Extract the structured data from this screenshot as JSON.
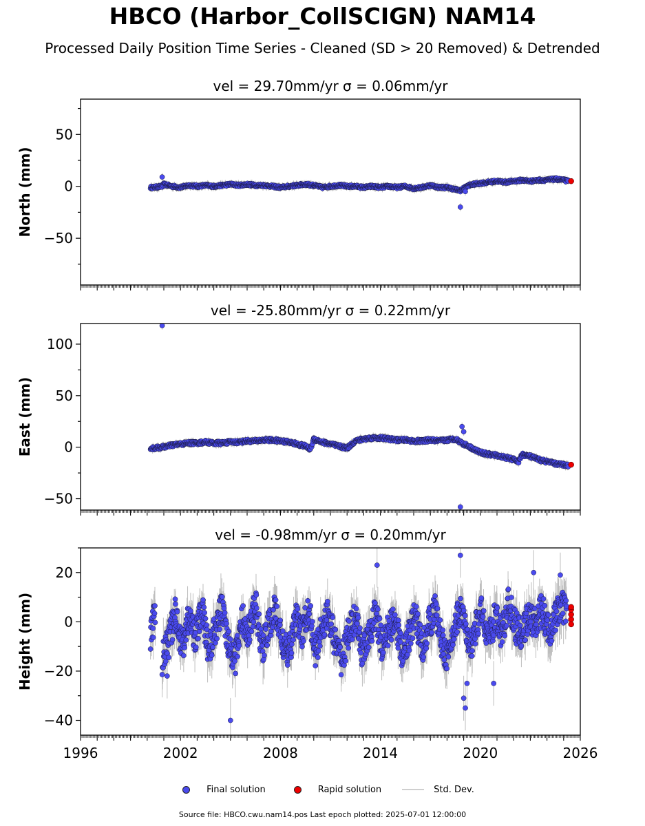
{
  "header": {
    "title": "HBCO (Harbor_CollSCIGN) NAM14",
    "subtitle": "Processed Daily Position Time Series - Cleaned (SD > 20 Removed) & Detrended"
  },
  "legend": {
    "final": "Final solution",
    "rapid": "Rapid solution",
    "std": "Std. Dev."
  },
  "footer": {
    "text": "Source file: HBCO.cwu.nam14.pos  Last epoch plotted: 2025-07-01 12:00:00"
  },
  "colors": {
    "final": "#4a4aee",
    "rapid": "#ee0000",
    "std": "#bdbdbd"
  },
  "chart_data": [
    {
      "type": "scatter",
      "title": "vel = 29.70mm/yr   σ = 0.06mm/yr",
      "ylabel": "North (mm)",
      "xlim": [
        1996,
        2026
      ],
      "ylim": [
        -95,
        84
      ],
      "yticks": [
        -50,
        0,
        50
      ],
      "xtick_labels": [],
      "series": [
        {
          "name": "Final solution",
          "x": [
            2000.2,
            2000.4,
            2000.9,
            2001.0,
            2001.5,
            2002.0,
            2002.5,
            2003.0,
            2003.5,
            2004.0,
            2004.5,
            2005.0,
            2005.5,
            2006.0,
            2006.5,
            2007.0,
            2007.5,
            2008.0,
            2008.5,
            2009.0,
            2009.5,
            2010.0,
            2010.5,
            2011.0,
            2011.5,
            2012.0,
            2012.5,
            2013.0,
            2013.5,
            2014.0,
            2014.5,
            2015.0,
            2015.5,
            2016.0,
            2016.5,
            2017.0,
            2017.5,
            2018.0,
            2018.5,
            2018.8,
            2019.0,
            2019.3,
            2019.6,
            2020.0,
            2020.5,
            2021.0,
            2021.5,
            2022.0,
            2022.5,
            2023.0,
            2023.5,
            2024.0,
            2024.5,
            2025.0,
            2025.3
          ],
          "y": [
            -1,
            -1,
            0,
            2,
            0,
            -1,
            1,
            0,
            1,
            0,
            1,
            2,
            1,
            2,
            1,
            1,
            0,
            -1,
            0,
            1,
            2,
            1,
            -1,
            0,
            1,
            0,
            0,
            -1,
            0,
            -1,
            0,
            -1,
            0,
            -2,
            -1,
            1,
            -1,
            -1,
            -3,
            -4,
            -2,
            1,
            2,
            3,
            4,
            5,
            4,
            5,
            6,
            5,
            6,
            6,
            7,
            6,
            5
          ]
        },
        {
          "name": "Rapid solution",
          "x": [
            2025.45
          ],
          "y": [
            5
          ]
        }
      ],
      "outliers": [
        {
          "x": 2000.9,
          "y": 9
        },
        {
          "x": 2018.8,
          "y": -20
        },
        {
          "x": 2019.1,
          "y": -5
        }
      ]
    },
    {
      "type": "scatter",
      "title": "vel = -25.80mm/yr   σ = 0.22mm/yr",
      "ylabel": "East (mm)",
      "xlim": [
        1996,
        2026
      ],
      "ylim": [
        -61,
        120
      ],
      "yticks": [
        -50,
        0,
        50,
        100
      ],
      "xtick_labels": [],
      "series": [
        {
          "name": "Final solution",
          "x": [
            2000.2,
            2000.4,
            2000.9,
            2001.5,
            2002.0,
            2002.5,
            2003.0,
            2003.5,
            2004.0,
            2004.5,
            2005.0,
            2005.5,
            2006.0,
            2006.5,
            2007.0,
            2007.5,
            2008.0,
            2008.5,
            2009.0,
            2009.5,
            2009.8,
            2010.0,
            2010.5,
            2011.0,
            2011.5,
            2012.0,
            2012.5,
            2013.0,
            2013.5,
            2014.0,
            2014.5,
            2015.0,
            2015.5,
            2016.0,
            2016.5,
            2017.0,
            2017.5,
            2018.0,
            2018.5,
            2018.8,
            2019.0,
            2019.3,
            2019.6,
            2020.0,
            2020.5,
            2021.0,
            2021.5,
            2022.0,
            2022.3,
            2022.5,
            2023.0,
            2023.5,
            2024.0,
            2024.5,
            2025.0,
            2025.3
          ],
          "y": [
            -1,
            -1,
            0,
            2,
            3,
            4,
            4,
            5,
            4,
            4,
            5,
            5,
            6,
            6,
            7,
            7,
            6,
            5,
            3,
            1,
            -2,
            8,
            5,
            3,
            1,
            -1,
            6,
            8,
            9,
            9,
            8,
            7,
            7,
            6,
            6,
            7,
            6,
            7,
            8,
            5,
            3,
            1,
            -2,
            -5,
            -7,
            -8,
            -10,
            -12,
            -14,
            -7,
            -9,
            -12,
            -14,
            -16,
            -17,
            -18
          ]
        },
        {
          "name": "Rapid solution",
          "x": [
            2025.45
          ],
          "y": [
            -17
          ]
        }
      ],
      "outliers": [
        {
          "x": 2000.9,
          "y": 118
        },
        {
          "x": 2018.8,
          "y": -58
        },
        {
          "x": 2018.9,
          "y": 20
        },
        {
          "x": 2019.0,
          "y": 15
        }
      ]
    },
    {
      "type": "scatter",
      "title": "vel = -0.98mm/yr   σ = 0.20mm/yr",
      "ylabel": "Height (mm)",
      "xlim": [
        1996,
        2026
      ],
      "ylim": [
        -46,
        30
      ],
      "yticks": [
        -40,
        -20,
        0,
        20
      ],
      "xtick_labels": [
        "1996",
        "2002",
        "2008",
        "2014",
        "2020",
        "2026"
      ],
      "series": [
        {
          "name": "Final solution",
          "x": [
            2000.2,
            2000.5,
            2000.9,
            2001.3,
            2001.7,
            2002.1,
            2002.5,
            2002.9,
            2003.3,
            2003.7,
            2004.1,
            2004.5,
            2004.9,
            2005.3,
            2005.7,
            2006.1,
            2006.5,
            2006.9,
            2007.3,
            2007.7,
            2008.1,
            2008.5,
            2008.9,
            2009.3,
            2009.7,
            2010.1,
            2010.5,
            2010.9,
            2011.3,
            2011.7,
            2012.1,
            2012.5,
            2012.9,
            2013.3,
            2013.7,
            2014.1,
            2014.5,
            2014.9,
            2015.3,
            2015.7,
            2016.1,
            2016.5,
            2016.9,
            2017.3,
            2017.7,
            2018.1,
            2018.5,
            2018.9,
            2019.3,
            2019.7,
            2020.1,
            2020.5,
            2020.9,
            2021.3,
            2021.7,
            2022.1,
            2022.5,
            2022.9,
            2023.3,
            2023.7,
            2024.1,
            2024.5,
            2024.9,
            2025.2
          ],
          "y": [
            -5,
            3,
            -15,
            -8,
            4,
            -10,
            2,
            -6,
            5,
            -12,
            -3,
            6,
            -9,
            -15,
            1,
            -4,
            7,
            -11,
            -2,
            5,
            -8,
            -14,
            2,
            -5,
            6,
            -13,
            -1,
            3,
            -9,
            -16,
            -4,
            1,
            -12,
            -7,
            4,
            -10,
            -3,
            2,
            -14,
            -6,
            3,
            -11,
            -1,
            5,
            -9,
            -15,
            0,
            6,
            -12,
            -3,
            4,
            -7,
            2,
            -5,
            8,
            -2,
            -6,
            3,
            -1,
            5,
            -4,
            2,
            6,
            3
          ]
        },
        {
          "name": "Rapid solution",
          "x": [
            2025.45,
            2025.45,
            2025.45,
            2025.45,
            2025.45
          ],
          "y": [
            -1,
            1,
            3,
            5,
            6
          ]
        }
      ],
      "outliers": [
        {
          "x": 2005.0,
          "y": -40
        },
        {
          "x": 2013.8,
          "y": 23
        },
        {
          "x": 2018.8,
          "y": 27
        },
        {
          "x": 2019.0,
          "y": -31
        },
        {
          "x": 2019.1,
          "y": -35
        },
        {
          "x": 2019.2,
          "y": -25
        },
        {
          "x": 2020.8,
          "y": -25
        },
        {
          "x": 2024.8,
          "y": 19
        },
        {
          "x": 2023.2,
          "y": 20
        },
        {
          "x": 2001.2,
          "y": -22
        }
      ]
    }
  ]
}
